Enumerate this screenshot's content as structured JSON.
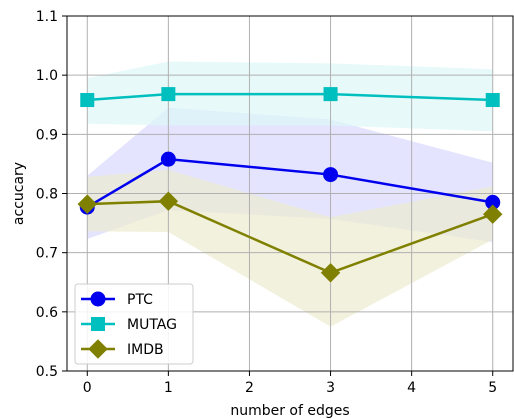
{
  "chart_data": {
    "type": "line",
    "xlabel": "number of edges",
    "ylabel": "accucary",
    "xlim": [
      -0.25,
      5.25
    ],
    "ylim": [
      0.5,
      1.1
    ],
    "xticks": [
      "0",
      "1",
      "2",
      "3",
      "4",
      "5"
    ],
    "yticks": [
      "0.5",
      "0.6",
      "0.7",
      "0.8",
      "0.9",
      "1.0",
      "1.1"
    ],
    "grid": true,
    "legend_position": "lower-left",
    "x": [
      0,
      1,
      3,
      5
    ],
    "series": [
      {
        "name": "PTC",
        "color": "#0000ee",
        "band_color": "#d9d9ff",
        "marker": "circle",
        "values": [
          0.777,
          0.858,
          0.832,
          0.785
        ],
        "upper": [
          0.83,
          0.945,
          0.925,
          0.852
        ],
        "lower": [
          0.723,
          0.772,
          0.757,
          0.718
        ]
      },
      {
        "name": "MUTAG",
        "color": "#00bfbf",
        "band_color": "#ddf7f7",
        "marker": "square",
        "values": [
          0.958,
          0.968,
          0.968,
          0.958
        ],
        "upper": [
          0.995,
          1.023,
          1.02,
          1.01
        ],
        "lower": [
          0.918,
          0.915,
          0.915,
          0.905
        ]
      },
      {
        "name": "IMDB",
        "color": "#808000",
        "band_color": "#ecebcf",
        "marker": "diamond",
        "values": [
          0.782,
          0.787,
          0.666,
          0.765
        ],
        "upper": [
          0.828,
          0.84,
          0.76,
          0.812
        ],
        "lower": [
          0.736,
          0.735,
          0.575,
          0.722
        ]
      }
    ]
  }
}
